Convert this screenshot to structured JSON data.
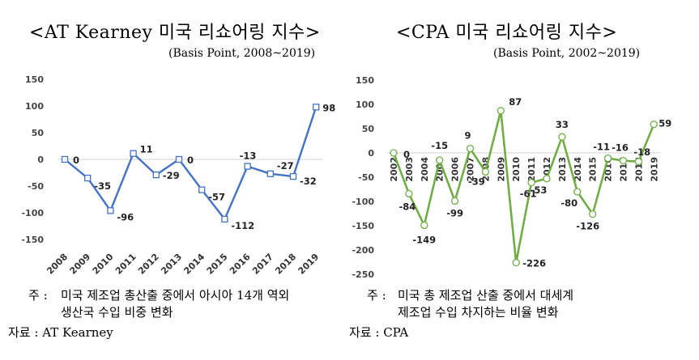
{
  "chart_data": [
    {
      "type": "line",
      "title": "<AT Kearney 미국 리쇼어링 지수>",
      "subtitle": "(Basis Point, 2008~2019)",
      "categories": [
        "2008",
        "2009",
        "2010",
        "2011",
        "2012",
        "2013",
        "2014",
        "2015",
        "2016",
        "2017",
        "2018",
        "2019"
      ],
      "values": [
        0,
        -35,
        -96,
        11,
        -29,
        0,
        -57,
        -112,
        -13,
        -27,
        -32,
        98
      ],
      "data_labels": [
        "0",
        "-35",
        "-96",
        "11",
        "-29",
        "0",
        "-57",
        "-112",
        "-13",
        "-27",
        "-32",
        "98"
      ],
      "ylim": [
        -150,
        150
      ],
      "yticks": [
        -150,
        -100,
        -50,
        0,
        50,
        100,
        150
      ],
      "ytick_labels": [
        "-150",
        "-100",
        "-50",
        "0",
        "50",
        "100",
        "150"
      ],
      "grid": false,
      "color": "#4472C4",
      "marker": "square",
      "note_prefix": "주 :",
      "note_lines": [
        "미국 제조업 총산출 중에서 아시아 14개 역외",
        "생산국 수입 비중 변화"
      ],
      "source": "자료 : AT Kearney"
    },
    {
      "type": "line",
      "title": "<CPA 미국 리쇼어링 지수>",
      "subtitle": "(Basis Point, 2002~2019)",
      "categories": [
        "2002",
        "2003",
        "2004",
        "2005",
        "2006",
        "2007",
        "2008",
        "2009",
        "2010",
        "2011",
        "2012",
        "2013",
        "2014",
        "2015",
        "2016",
        "2017",
        "2018",
        "2019"
      ],
      "values": [
        0,
        -84,
        -149,
        -15,
        -99,
        9,
        -39,
        87,
        -226,
        -61,
        -53,
        33,
        -80,
        -126,
        -11,
        -16,
        -18,
        59
      ],
      "data_labels": [
        "0",
        "-84",
        "-149",
        "-15",
        "-99",
        "9",
        "-39",
        "87",
        "-226",
        "-61",
        "-53",
        "33",
        "-80",
        "-126",
        "-11",
        "-16",
        "-18",
        "59"
      ],
      "ylim": [
        -250,
        150
      ],
      "yticks": [
        -250,
        -200,
        -150,
        -100,
        -50,
        0,
        50,
        100,
        150
      ],
      "ytick_labels": [
        "-250",
        "-200",
        "-150",
        "-100",
        "-50",
        "0",
        "50",
        "100",
        "150"
      ],
      "grid": false,
      "color": "#70AD47",
      "marker": "circle",
      "note_prefix": "주 :",
      "note_lines": [
        "미국 총 제조업 산출 중에서 대세계",
        "제조업 수입 차지하는 비율 변화"
      ],
      "source": "자료 : CPA"
    }
  ]
}
